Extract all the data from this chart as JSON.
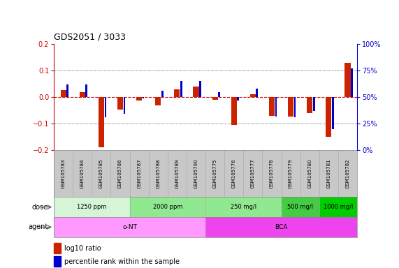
{
  "title": "GDS2051 / 3033",
  "samples": [
    "GSM105783",
    "GSM105784",
    "GSM105785",
    "GSM105786",
    "GSM105787",
    "GSM105788",
    "GSM105789",
    "GSM105790",
    "GSM105775",
    "GSM105776",
    "GSM105777",
    "GSM105778",
    "GSM105779",
    "GSM105780",
    "GSM105781",
    "GSM105782"
  ],
  "log10_ratio": [
    0.028,
    0.02,
    -0.19,
    -0.048,
    -0.012,
    -0.03,
    0.03,
    0.04,
    -0.01,
    -0.105,
    0.012,
    -0.07,
    -0.072,
    -0.06,
    -0.15,
    0.13
  ],
  "percentile_rank": [
    0.62,
    0.62,
    0.31,
    0.34,
    0.49,
    0.56,
    0.65,
    0.65,
    0.55,
    0.47,
    0.58,
    0.32,
    0.31,
    0.37,
    0.2,
    0.77
  ],
  "ylim": [
    -0.2,
    0.2
  ],
  "yticks_left": [
    -0.2,
    -0.1,
    0.0,
    0.1,
    0.2
  ],
  "dose_groups": [
    {
      "label": "1250 ppm",
      "start": 0,
      "end": 4,
      "color": "#d6f5d6"
    },
    {
      "label": "2000 ppm",
      "start": 4,
      "end": 8,
      "color": "#90e890"
    },
    {
      "label": "250 mg/l",
      "start": 8,
      "end": 12,
      "color": "#90e890"
    },
    {
      "label": "500 mg/l",
      "start": 12,
      "end": 14,
      "color": "#44cc44"
    },
    {
      "label": "1000 mg/l",
      "start": 14,
      "end": 16,
      "color": "#00cc00"
    }
  ],
  "agent_groups": [
    {
      "label": "o-NT",
      "start": 0,
      "end": 8,
      "color": "#ff99ff"
    },
    {
      "label": "BCA",
      "start": 8,
      "end": 16,
      "color": "#ee44ee"
    }
  ],
  "bar_color_red": "#cc2200",
  "bar_color_blue": "#0000cc",
  "zero_line_color": "#cc0000",
  "label_row_color": "#c8c8c8",
  "title_color": "#000000",
  "left_axis_color": "#cc0000",
  "right_axis_color": "#0000cc"
}
